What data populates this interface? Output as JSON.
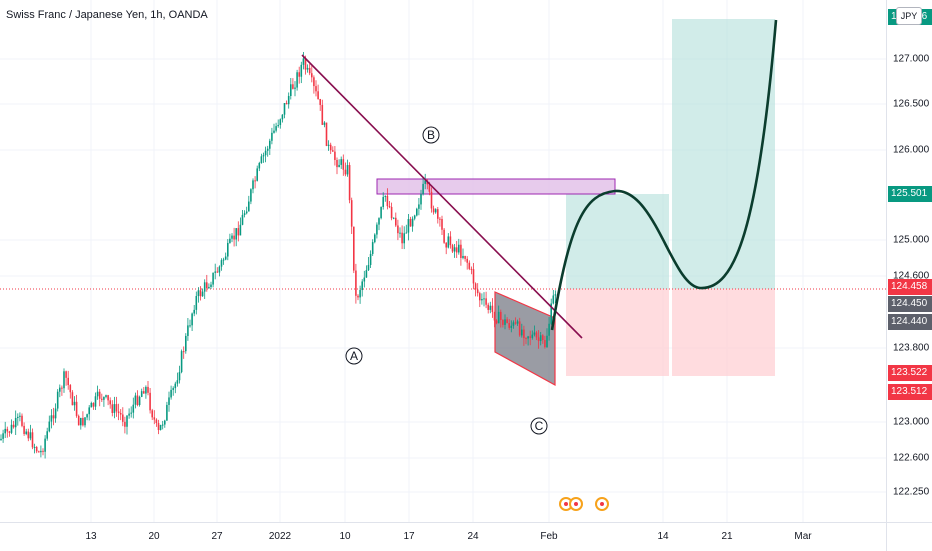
{
  "title": "Swiss Franc / Japanese Yen, 1h, OANDA",
  "currency": "JPY",
  "price_ticks": [
    "127.000",
    "126.500",
    "126.000",
    "125.000",
    "124.600",
    "123.800",
    "123.000",
    "122.600",
    "122.250"
  ],
  "price_tags": [
    {
      "label": "127.216",
      "color": "#089981"
    },
    {
      "label": "125.501",
      "color": "#089981"
    },
    {
      "label": "124.458",
      "color": "#f23645"
    },
    {
      "label": "124.450",
      "color": "#5d606b"
    },
    {
      "label": "124.440",
      "color": "#5d606b"
    },
    {
      "label": "123.522",
      "color": "#f23645"
    },
    {
      "label": "123.512",
      "color": "#f23645"
    }
  ],
  "time_labels": [
    "13",
    "20",
    "27",
    "2022",
    "10",
    "17",
    "24",
    "Feb",
    "14",
    "21",
    "Mar"
  ],
  "wave_labels": [
    "A",
    "B",
    "C"
  ],
  "events": [
    "economic-event",
    "economic-event",
    "economic-event"
  ],
  "colors": {
    "up": "#089981",
    "down": "#f23645",
    "trendline": "#880e4f",
    "projection": "#0b3d2e",
    "zone": "#ce93d8",
    "profit": "#b2dfdb",
    "loss": "#ffcdd2"
  }
}
